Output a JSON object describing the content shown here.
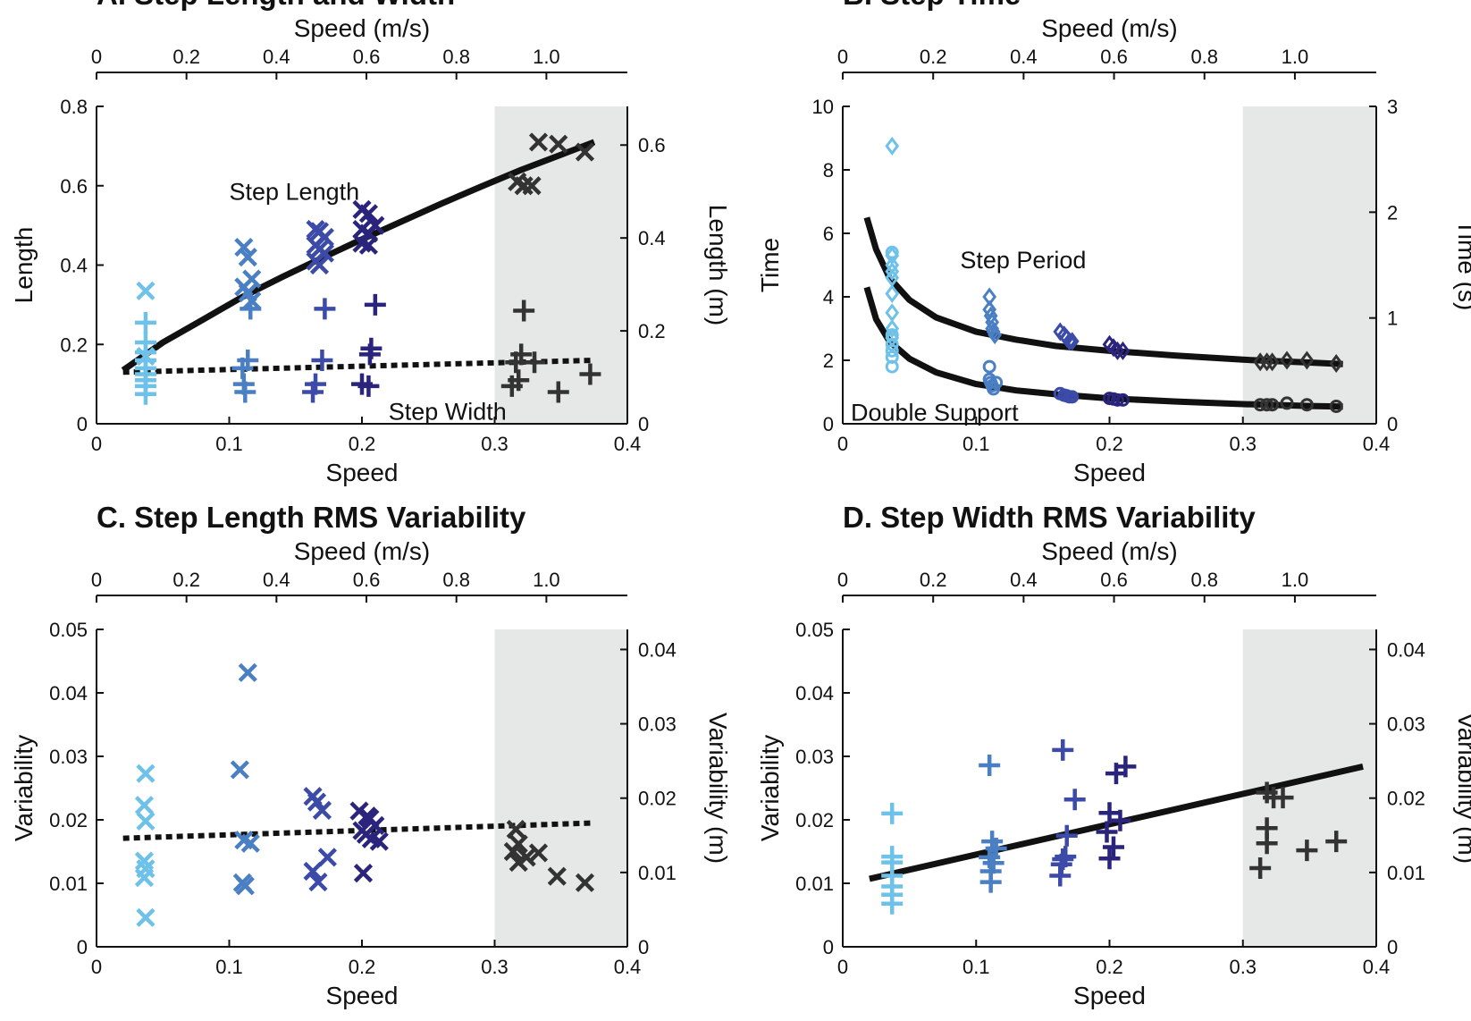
{
  "chart_data": [
    {
      "type": "scatter",
      "title": "A. Step Length and Width",
      "xlabel": "Speed",
      "ylabel": "Length",
      "x2label": "Speed (m/s)",
      "y2label": "Length (m)",
      "xlim": [
        0,
        0.4
      ],
      "ylim": [
        0,
        0.8
      ],
      "xticks": [
        "0",
        "0.1",
        "0.2",
        "0.3",
        "0.4"
      ],
      "yticks": [
        "0",
        "0.2",
        "0.4",
        "0.6",
        "0.8"
      ],
      "x2_scale": 2.95,
      "x2ticks": [
        "0",
        "0.2",
        "0.4",
        "0.6",
        "0.8",
        "1.0"
      ],
      "y2_scale": 0.854,
      "y2ticks": [
        "0",
        "0.2",
        "0.4",
        "0.6"
      ],
      "shaded_x": [
        0.3,
        0.4
      ],
      "grid": false,
      "annotations": [
        {
          "text": "Step Length",
          "x": 0.1,
          "y": 0.565
        },
        {
          "text": "Step Width",
          "x": 0.22,
          "y": 0.01
        }
      ],
      "series": [
        {
          "marker": "x",
          "color": "#6ec1e8",
          "x": [
            0.037,
            0.037
          ],
          "y": [
            0.335,
            0.17
          ]
        },
        {
          "marker": "+",
          "color": "#6ec1e8",
          "x": [
            0.037,
            0.037,
            0.037,
            0.037,
            0.037,
            0.037,
            0.037,
            0.037,
            0.037
          ],
          "y": [
            0.255,
            0.205,
            0.18,
            0.16,
            0.14,
            0.125,
            0.11,
            0.095,
            0.075
          ]
        },
        {
          "marker": "x",
          "color": "#4a7fc4",
          "x": [
            0.111,
            0.114,
            0.117,
            0.111,
            0.114,
            0.117
          ],
          "y": [
            0.445,
            0.42,
            0.365,
            0.345,
            0.33,
            0.31
          ]
        },
        {
          "marker": "+",
          "color": "#4a7fc4",
          "x": [
            0.116,
            0.114,
            0.11,
            0.111,
            0.112
          ],
          "y": [
            0.29,
            0.16,
            0.14,
            0.1,
            0.08
          ]
        },
        {
          "marker": "x",
          "color": "#3c4aa8",
          "x": [
            0.165,
            0.168,
            0.172,
            0.165,
            0.168,
            0.172,
            0.165,
            0.168
          ],
          "y": [
            0.49,
            0.485,
            0.47,
            0.45,
            0.44,
            0.43,
            0.41,
            0.4
          ]
        },
        {
          "marker": "+",
          "color": "#3c4aa8",
          "x": [
            0.172,
            0.17,
            0.165,
            0.163
          ],
          "y": [
            0.29,
            0.16,
            0.1,
            0.08
          ]
        },
        {
          "marker": "x",
          "color": "#2a247c",
          "x": [
            0.2,
            0.205,
            0.21,
            0.2,
            0.205,
            0.2,
            0.205
          ],
          "y": [
            0.54,
            0.53,
            0.5,
            0.49,
            0.48,
            0.455,
            0.45
          ]
        },
        {
          "marker": "+",
          "color": "#2a247c",
          "x": [
            0.21,
            0.207,
            0.206,
            0.2,
            0.205
          ],
          "y": [
            0.3,
            0.19,
            0.175,
            0.1,
            0.095
          ]
        },
        {
          "marker": "x",
          "color": "#333333",
          "x": [
            0.333,
            0.348,
            0.368,
            0.317,
            0.322,
            0.328
          ],
          "y": [
            0.71,
            0.705,
            0.685,
            0.61,
            0.6,
            0.6
          ]
        },
        {
          "marker": "+",
          "color": "#333333",
          "x": [
            0.322,
            0.32,
            0.316,
            0.33,
            0.318,
            0.313,
            0.372,
            0.348
          ],
          "y": [
            0.285,
            0.175,
            0.155,
            0.155,
            0.11,
            0.095,
            0.125,
            0.08
          ]
        }
      ],
      "fits": [
        {
          "style": "solid",
          "x": [
            0.02,
            0.05,
            0.08,
            0.11,
            0.14,
            0.17,
            0.2,
            0.23,
            0.26,
            0.29,
            0.32,
            0.35,
            0.375
          ],
          "y": [
            0.135,
            0.205,
            0.262,
            0.32,
            0.37,
            0.418,
            0.465,
            0.51,
            0.555,
            0.598,
            0.64,
            0.678,
            0.71
          ]
        },
        {
          "style": "dotted",
          "x": [
            0.02,
            0.375
          ],
          "y": [
            0.13,
            0.16
          ]
        }
      ]
    },
    {
      "type": "scatter",
      "title": "B. Step Time",
      "xlabel": "Speed",
      "ylabel": "Time",
      "x2label": "Speed (m/s)",
      "y2label": "Time (s)",
      "xlim": [
        0,
        0.4
      ],
      "ylim": [
        0,
        10
      ],
      "xticks": [
        "0",
        "0.1",
        "0.2",
        "0.3",
        "0.4"
      ],
      "yticks": [
        "0",
        "2",
        "4",
        "6",
        "8",
        "10"
      ],
      "x2_scale": 2.95,
      "x2ticks": [
        "0",
        "0.2",
        "0.4",
        "0.6",
        "0.8",
        "1.0"
      ],
      "y2_scale": 0.3,
      "y2ticks": [
        "0",
        "1",
        "2",
        "3"
      ],
      "shaded_x": [
        0.3,
        0.4
      ],
      "grid": false,
      "annotations": [
        {
          "text": "Step Period",
          "x": 0.088,
          "y": 4.9
        },
        {
          "text": "Double Support",
          "x": 0.006,
          "y": 0.1
        }
      ],
      "series": [
        {
          "marker": "diamond",
          "color": "#6ec1e8",
          "x": [
            0.037,
            0.037,
            0.037,
            0.037,
            0.037,
            0.037,
            0.037,
            0.037,
            0.037
          ],
          "y": [
            8.75,
            5.3,
            5.0,
            4.8,
            4.6,
            4.1,
            3.5,
            3.0,
            2.7
          ]
        },
        {
          "marker": "circle",
          "color": "#6ec1e8",
          "x": [
            0.037,
            0.037,
            0.037,
            0.037,
            0.037,
            0.037
          ],
          "y": [
            5.4,
            2.8,
            2.5,
            2.3,
            2.1,
            1.8
          ]
        },
        {
          "marker": "diamond",
          "color": "#4a7fc4",
          "x": [
            0.11,
            0.11,
            0.111,
            0.112,
            0.112,
            0.113,
            0.114
          ],
          "y": [
            4.0,
            3.6,
            3.4,
            3.2,
            3.0,
            2.9,
            2.8
          ]
        },
        {
          "marker": "circle",
          "color": "#4a7fc4",
          "x": [
            0.11,
            0.11,
            0.111,
            0.112,
            0.113,
            0.115
          ],
          "y": [
            1.8,
            1.4,
            1.3,
            1.2,
            1.1,
            1.3
          ]
        },
        {
          "marker": "diamond",
          "color": "#3c4aa8",
          "x": [
            0.163,
            0.166,
            0.168,
            0.17,
            0.172
          ],
          "y": [
            2.9,
            2.8,
            2.7,
            2.6,
            2.6
          ]
        },
        {
          "marker": "circle",
          "color": "#3c4aa8",
          "x": [
            0.163,
            0.166,
            0.168,
            0.17,
            0.172
          ],
          "y": [
            0.95,
            0.9,
            0.88,
            0.85,
            0.85
          ]
        },
        {
          "marker": "diamond",
          "color": "#2a247c",
          "x": [
            0.2,
            0.203,
            0.206,
            0.21
          ],
          "y": [
            2.5,
            2.4,
            2.3,
            2.3
          ]
        },
        {
          "marker": "circle",
          "color": "#2a247c",
          "x": [
            0.2,
            0.203,
            0.206,
            0.21
          ],
          "y": [
            0.8,
            0.78,
            0.75,
            0.75
          ]
        },
        {
          "marker": "diamond",
          "color": "#333333",
          "x": [
            0.313,
            0.318,
            0.322,
            0.333,
            0.348,
            0.37
          ],
          "y": [
            1.95,
            1.95,
            1.95,
            2.0,
            2.0,
            1.9
          ]
        },
        {
          "marker": "circle",
          "color": "#333333",
          "x": [
            0.313,
            0.318,
            0.322,
            0.333,
            0.348,
            0.37
          ],
          "y": [
            0.6,
            0.6,
            0.6,
            0.65,
            0.6,
            0.55
          ]
        }
      ],
      "fits": [
        {
          "style": "solid",
          "x": [
            0.018,
            0.025,
            0.035,
            0.05,
            0.07,
            0.1,
            0.13,
            0.16,
            0.2,
            0.25,
            0.3,
            0.35,
            0.375
          ],
          "y": [
            6.5,
            5.5,
            4.6,
            3.9,
            3.35,
            2.9,
            2.65,
            2.45,
            2.3,
            2.15,
            2.02,
            1.93,
            1.88
          ]
        },
        {
          "style": "solid",
          "x": [
            0.018,
            0.025,
            0.035,
            0.05,
            0.07,
            0.1,
            0.13,
            0.16,
            0.2,
            0.25,
            0.3,
            0.35,
            0.375
          ],
          "y": [
            4.3,
            3.3,
            2.6,
            2.05,
            1.62,
            1.25,
            1.05,
            0.93,
            0.8,
            0.7,
            0.62,
            0.56,
            0.54
          ]
        }
      ]
    },
    {
      "type": "scatter",
      "title": "C. Step Length RMS Variability",
      "xlabel": "Speed",
      "ylabel": "Variability",
      "x2label": "Speed (m/s)",
      "y2label": "Variability (m)",
      "xlim": [
        0,
        0.4
      ],
      "ylim": [
        0,
        0.05
      ],
      "xticks": [
        "0",
        "0.1",
        "0.2",
        "0.3",
        "0.4"
      ],
      "yticks": [
        "0",
        "0.01",
        "0.02",
        "0.03",
        "0.04",
        "0.05"
      ],
      "x2_scale": 2.95,
      "x2ticks": [
        "0",
        "0.2",
        "0.4",
        "0.6",
        "0.8",
        "1.0"
      ],
      "y2_scale": 0.854,
      "y2ticks": [
        "0",
        "0.01",
        "0.02",
        "0.03",
        "0.04"
      ],
      "shaded_x": [
        0.3,
        0.4
      ],
      "grid": false,
      "annotations": [],
      "series": [
        {
          "marker": "x",
          "color": "#6ec1e8",
          "x": [
            0.037,
            0.036,
            0.037,
            0.036,
            0.037,
            0.036,
            0.037
          ],
          "y": [
            0.0273,
            0.0223,
            0.0198,
            0.0135,
            0.0123,
            0.0109,
            0.0046
          ]
        },
        {
          "marker": "x",
          "color": "#4a7fc4",
          "x": [
            0.114,
            0.108,
            0.111,
            0.116,
            0.11,
            0.112
          ],
          "y": [
            0.0432,
            0.0279,
            0.0168,
            0.0163,
            0.0101,
            0.0096
          ]
        },
        {
          "marker": "x",
          "color": "#3c4aa8",
          "x": [
            0.163,
            0.166,
            0.17,
            0.174,
            0.163,
            0.167
          ],
          "y": [
            0.0237,
            0.0228,
            0.0215,
            0.0141,
            0.0119,
            0.0102
          ]
        },
        {
          "marker": "x",
          "color": "#2a247c",
          "x": [
            0.198,
            0.204,
            0.206,
            0.21,
            0.2,
            0.203,
            0.207,
            0.213,
            0.201
          ],
          "y": [
            0.0214,
            0.0206,
            0.0202,
            0.0191,
            0.0183,
            0.0177,
            0.017,
            0.0166,
            0.0116
          ]
        },
        {
          "marker": "x",
          "color": "#333333",
          "x": [
            0.316,
            0.318,
            0.314,
            0.333,
            0.324,
            0.318,
            0.347,
            0.368
          ],
          "y": [
            0.0185,
            0.0162,
            0.015,
            0.0148,
            0.0141,
            0.0133,
            0.0111,
            0.0101
          ]
        }
      ],
      "fits": [
        {
          "style": "dotted",
          "x": [
            0.02,
            0.375
          ],
          "y": [
            0.0171,
            0.0195
          ]
        }
      ]
    },
    {
      "type": "scatter",
      "title": "D. Step Width RMS Variability",
      "xlabel": "Speed",
      "ylabel": "Variability",
      "x2label": "Speed (m/s)",
      "y2label": "Variability (m)",
      "xlim": [
        0,
        0.4
      ],
      "ylim": [
        0,
        0.05
      ],
      "xticks": [
        "0",
        "0.1",
        "0.2",
        "0.3",
        "0.4"
      ],
      "yticks": [
        "0",
        "0.01",
        "0.02",
        "0.03",
        "0.04",
        "0.05"
      ],
      "x2_scale": 2.95,
      "x2ticks": [
        "0",
        "0.2",
        "0.4",
        "0.6",
        "0.8",
        "1.0"
      ],
      "y2_scale": 0.854,
      "y2ticks": [
        "0",
        "0.01",
        "0.02",
        "0.03",
        "0.04"
      ],
      "shaded_x": [
        0.3,
        0.4
      ],
      "grid": false,
      "annotations": [],
      "series": [
        {
          "marker": "+",
          "color": "#6ec1e8",
          "x": [
            0.037,
            0.037,
            0.037,
            0.037,
            0.037,
            0.037,
            0.037
          ],
          "y": [
            0.021,
            0.0142,
            0.0133,
            0.0112,
            0.0095,
            0.0082,
            0.0068
          ]
        },
        {
          "marker": "+",
          "color": "#4a7fc4",
          "x": [
            0.11,
            0.112,
            0.115,
            0.11,
            0.113,
            0.111,
            0.111
          ],
          "y": [
            0.0286,
            0.0166,
            0.0155,
            0.0141,
            0.0132,
            0.0119,
            0.0102
          ]
        },
        {
          "marker": "+",
          "color": "#3c4aa8",
          "x": [
            0.165,
            0.174,
            0.168,
            0.167,
            0.165,
            0.164,
            0.163
          ],
          "y": [
            0.031,
            0.0232,
            0.0175,
            0.0142,
            0.0138,
            0.013,
            0.0112
          ]
        },
        {
          "marker": "+",
          "color": "#2a247c",
          "x": [
            0.212,
            0.205,
            0.2,
            0.208,
            0.198,
            0.203,
            0.2
          ],
          "y": [
            0.0284,
            0.0273,
            0.0211,
            0.0199,
            0.0181,
            0.0157,
            0.0139
          ]
        },
        {
          "marker": "+",
          "color": "#333333",
          "x": [
            0.318,
            0.323,
            0.33,
            0.318,
            0.318,
            0.313,
            0.348,
            0.37
          ],
          "y": [
            0.0243,
            0.0235,
            0.0235,
            0.0187,
            0.0163,
            0.0124,
            0.0152,
            0.0166
          ]
        }
      ],
      "fits": [
        {
          "style": "solid",
          "x": [
            0.02,
            0.39
          ],
          "y": [
            0.0107,
            0.0284
          ]
        }
      ]
    }
  ]
}
